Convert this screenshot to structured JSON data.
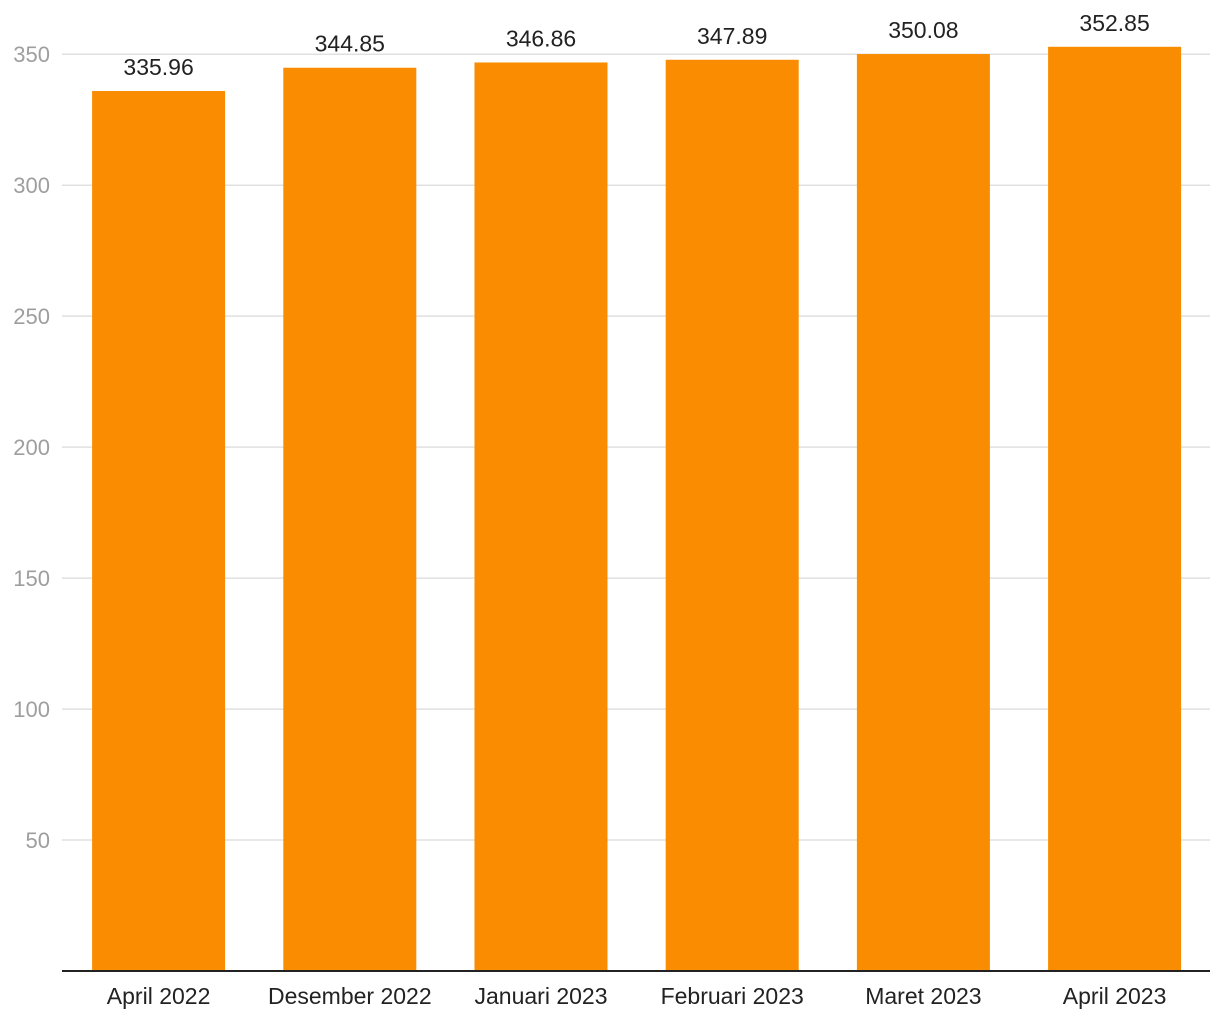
{
  "chart_data": {
    "type": "bar",
    "title": "",
    "xlabel": "",
    "ylabel": "",
    "categories": [
      "April 2022",
      "Desember 2022",
      "Januari 2023",
      "Februari 2023",
      "Maret 2023",
      "April 2023"
    ],
    "values": [
      335.96,
      344.85,
      346.86,
      347.89,
      350.08,
      352.85
    ],
    "data_labels": [
      "335.96",
      "344.85",
      "346.86",
      "347.89",
      "350.08",
      "352.85"
    ],
    "yticks": [
      50,
      100,
      150,
      200,
      250,
      300,
      350
    ],
    "ylim": [
      0,
      350
    ],
    "grid": true,
    "legend": "none",
    "bar_color": "#F98C00"
  }
}
